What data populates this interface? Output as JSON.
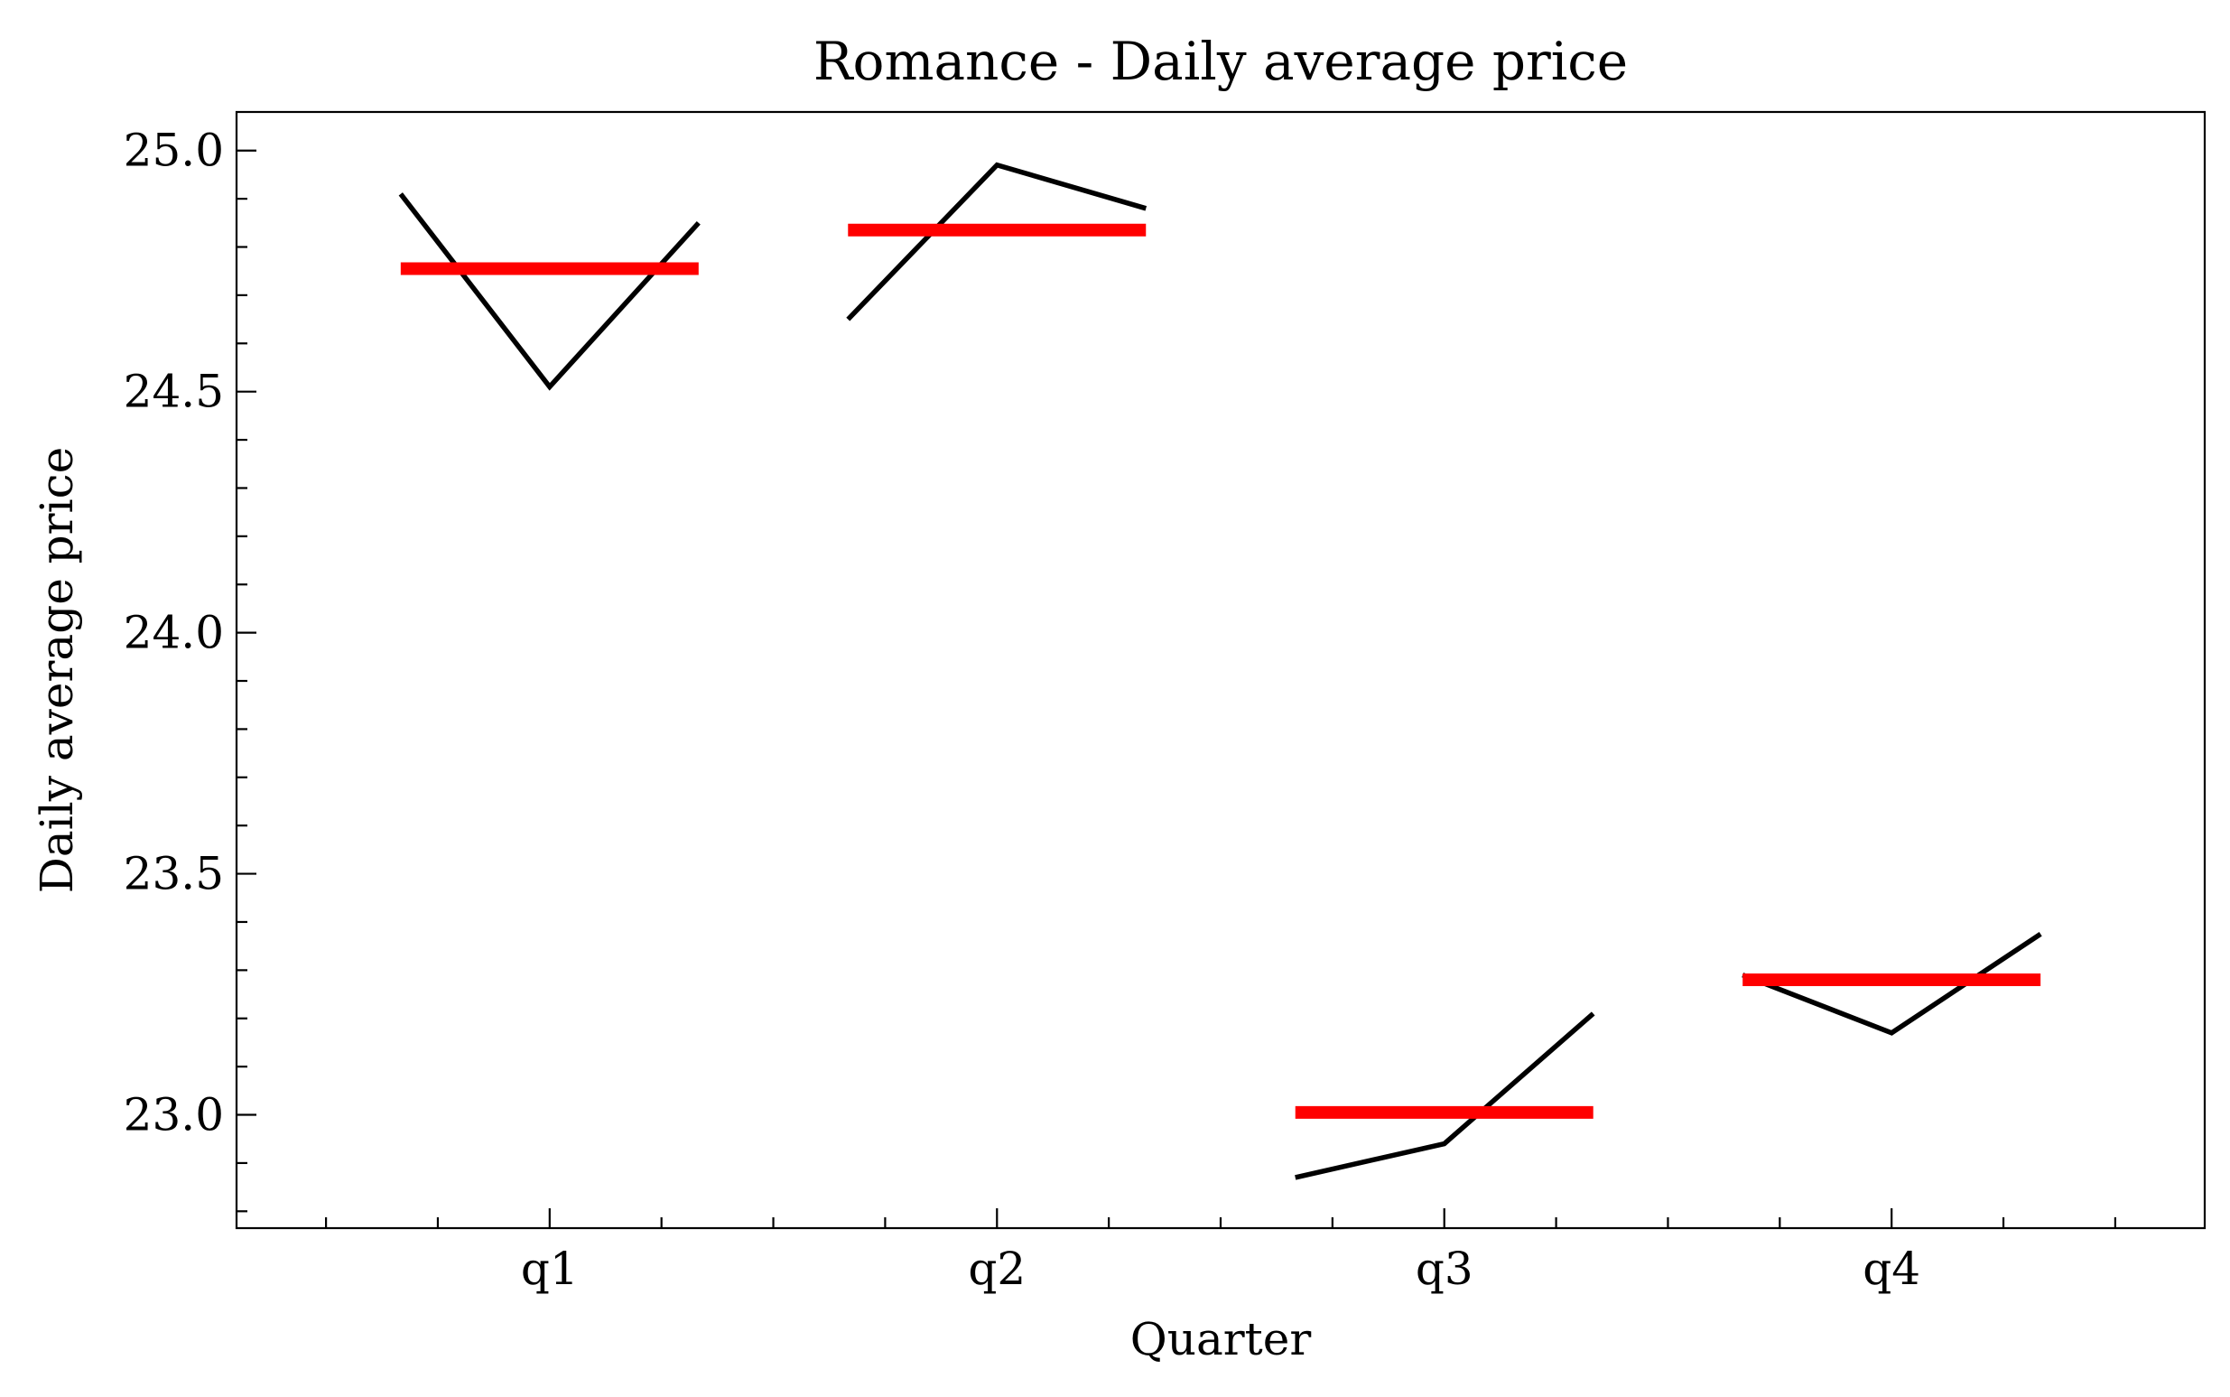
{
  "chart_data": {
    "type": "line",
    "title": "Romance - Daily average price",
    "xlabel": "Quarter",
    "ylabel": "Daily average price",
    "categories": [
      "q1",
      "q2",
      "q3",
      "q4"
    ],
    "ylim": [
      22.765,
      25.08
    ],
    "xlim": [
      -0.7,
      3.7
    ],
    "yticks": [
      {
        "value": 23.0,
        "label": "23.0"
      },
      {
        "value": 23.5,
        "label": "23.5"
      },
      {
        "value": 24.0,
        "label": "24.0"
      },
      {
        "value": 24.5,
        "label": "24.5"
      },
      {
        "value": 25.0,
        "label": "25.0"
      }
    ],
    "segments": [
      {
        "quarter": "q1",
        "values": [
          24.91,
          24.51,
          24.85
        ],
        "mean": 24.755
      },
      {
        "quarter": "q2",
        "values": [
          24.65,
          24.97,
          24.88
        ],
        "mean": 24.835
      },
      {
        "quarter": "q3",
        "values": [
          22.87,
          22.94,
          23.21
        ],
        "mean": 23.005
      },
      {
        "quarter": "q4",
        "values": [
          23.29,
          23.17,
          23.375
        ],
        "mean": 23.28
      }
    ],
    "line_color": "#000000",
    "mean_color": "#ff0000",
    "grid": false,
    "legend": "none"
  }
}
